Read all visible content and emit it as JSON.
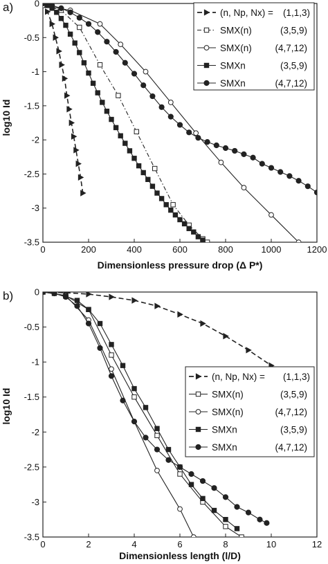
{
  "chart_data": [
    {
      "type": "line",
      "panel_label": "a)",
      "xlabel": "Dimensionless pressure drop (Δ P*)",
      "ylabel": "log10 Id",
      "xlim": [
        0,
        1200
      ],
      "ylim": [
        -3.5,
        0
      ],
      "xticks": [
        "0",
        "200",
        "400",
        "600",
        "800",
        "1000",
        "1200"
      ],
      "yticks": [
        "0",
        "-0.5",
        "-1",
        "-1.5",
        "-2",
        "-2.5",
        "-3",
        "-3.5"
      ],
      "legend_position": "top-right",
      "legend_header": {
        "label": "(n, Np, Nx) =",
        "values": "(1,1,3)"
      },
      "series": [
        {
          "label": "(1,1,3)",
          "color": "#222222",
          "line": "dashed",
          "marker": "triangle-right",
          "x": [
            0,
            20,
            40,
            55,
            70,
            82,
            95,
            105,
            115,
            125,
            135,
            145,
            155,
            165,
            175
          ],
          "y": [
            0,
            -0.12,
            -0.3,
            -0.5,
            -0.7,
            -0.9,
            -1.1,
            -1.35,
            -1.55,
            -1.75,
            -1.95,
            -2.15,
            -2.35,
            -2.55,
            -2.78
          ]
        },
        {
          "label": "SMX(n)",
          "params": "(3,5,9)",
          "color": "#222222",
          "line": "dashdot",
          "marker": "square-open",
          "x": [
            0,
            80,
            160,
            250,
            330,
            410,
            490,
            570,
            640,
            700,
            720
          ],
          "y": [
            -0.02,
            -0.1,
            -0.35,
            -0.9,
            -1.35,
            -1.88,
            -2.42,
            -2.95,
            -3.25,
            -3.45,
            -3.5
          ]
        },
        {
          "label": "SMX(n)",
          "params": "(4,7,12)",
          "color": "#222222",
          "line": "solid",
          "marker": "circle-open",
          "x": [
            0,
            120,
            250,
            340,
            450,
            560,
            670,
            780,
            880,
            1000,
            1120
          ],
          "y": [
            -0.03,
            -0.1,
            -0.3,
            -0.6,
            -1.0,
            -1.45,
            -1.9,
            -2.33,
            -2.7,
            -3.1,
            -3.5
          ]
        },
        {
          "label": "SMXn",
          "params": "(3,5,9)",
          "color": "#222222",
          "line": "solid",
          "marker": "square-filled",
          "x": [
            0,
            20,
            40,
            60,
            80,
            100,
            120,
            140,
            160,
            180,
            200,
            220,
            240,
            260,
            280,
            300,
            320,
            340,
            360,
            380,
            400,
            420,
            440,
            460,
            480,
            500,
            520,
            540,
            560,
            580,
            600,
            620,
            640,
            660,
            680,
            700
          ],
          "y": [
            0,
            -0.03,
            -0.07,
            -0.13,
            -0.22,
            -0.32,
            -0.45,
            -0.58,
            -0.72,
            -0.87,
            -1.02,
            -1.17,
            -1.31,
            -1.45,
            -1.58,
            -1.7,
            -1.82,
            -1.94,
            -2.05,
            -2.16,
            -2.27,
            -2.38,
            -2.48,
            -2.58,
            -2.68,
            -2.78,
            -2.86,
            -2.95,
            -3.03,
            -3.1,
            -3.17,
            -3.23,
            -3.3,
            -3.35,
            -3.42,
            -3.47
          ]
        },
        {
          "label": "SMXn",
          "params": "(4,7,12)",
          "color": "#222222",
          "line": "solid",
          "marker": "circle-filled",
          "x": [
            0,
            40,
            80,
            120,
            160,
            200,
            240,
            280,
            320,
            360,
            400,
            440,
            480,
            520,
            560,
            600,
            640,
            680,
            720,
            760,
            800,
            840,
            880,
            920,
            960,
            1000,
            1040,
            1080,
            1120,
            1160,
            1200
          ],
          "y": [
            0,
            -0.03,
            -0.07,
            -0.13,
            -0.21,
            -0.3,
            -0.42,
            -0.56,
            -0.71,
            -0.87,
            -1.03,
            -1.2,
            -1.36,
            -1.52,
            -1.66,
            -1.78,
            -1.89,
            -1.97,
            -2.03,
            -2.08,
            -2.12,
            -2.16,
            -2.21,
            -2.26,
            -2.35,
            -2.41,
            -2.47,
            -2.53,
            -2.6,
            -2.68,
            -2.77
          ]
        }
      ]
    },
    {
      "type": "line",
      "panel_label": "b)",
      "xlabel": "Dimensionless length (l/D)",
      "ylabel": "log10 Id",
      "xlim": [
        0,
        12
      ],
      "ylim": [
        -3.5,
        0
      ],
      "xticks": [
        "0",
        "2",
        "4",
        "6",
        "8",
        "10",
        "12"
      ],
      "yticks": [
        "0",
        "-0.5",
        "-1",
        "-1.5",
        "-2",
        "-2.5",
        "-3",
        "-3.5"
      ],
      "legend_position": "middle-right",
      "legend_header": {
        "label": "(n, Np, Nx) =",
        "values": "(1,1,3)"
      },
      "series": [
        {
          "label": "(1,1,3)",
          "color": "#222222",
          "line": "dashed",
          "marker": "triangle-right",
          "x": [
            0,
            1,
            2,
            3,
            4,
            5,
            6,
            7,
            8,
            9,
            10
          ],
          "y": [
            0,
            -0.01,
            -0.03,
            -0.07,
            -0.12,
            -0.2,
            -0.32,
            -0.45,
            -0.63,
            -0.83,
            -1.05
          ]
        },
        {
          "label": "SMX(n)",
          "params": "(3,5,9)",
          "color": "#222222",
          "line": "solid",
          "marker": "square-open",
          "x": [
            0,
            1,
            2,
            3,
            4,
            5,
            6,
            7,
            8,
            8.7
          ],
          "y": [
            0,
            -0.05,
            -0.25,
            -0.9,
            -1.5,
            -2.05,
            -2.6,
            -3.0,
            -3.35,
            -3.5
          ]
        },
        {
          "label": "SMX(n)",
          "params": "(4,7,12)",
          "color": "#222222",
          "line": "solid",
          "marker": "circle-open",
          "x": [
            0,
            1,
            2,
            3,
            4,
            5,
            6,
            6.6
          ],
          "y": [
            0,
            -0.05,
            -0.4,
            -1.1,
            -1.85,
            -2.55,
            -3.1,
            -3.5
          ]
        },
        {
          "label": "SMXn",
          "params": "(3,5,9)",
          "color": "#222222",
          "line": "solid",
          "marker": "square-filled",
          "x": [
            0,
            0.5,
            1,
            1.5,
            2,
            2.5,
            3,
            3.5,
            4,
            4.5,
            5,
            5.5,
            6,
            6.5,
            7,
            7.5,
            8,
            8.5
          ],
          "y": [
            0,
            -0.02,
            -0.06,
            -0.12,
            -0.25,
            -0.45,
            -0.75,
            -1.05,
            -1.38,
            -1.65,
            -1.95,
            -2.25,
            -2.5,
            -2.75,
            -2.95,
            -3.12,
            -3.25,
            -3.38
          ]
        },
        {
          "label": "SMXn",
          "params": "(4,7,12)",
          "color": "#222222",
          "line": "solid",
          "marker": "circle-filled",
          "x": [
            0,
            0.5,
            1,
            1.5,
            2,
            2.5,
            3,
            3.5,
            4,
            4.5,
            5,
            5.5,
            6,
            6.5,
            7,
            7.5,
            8,
            8.5,
            9,
            9.5,
            9.8
          ],
          "y": [
            0,
            -0.02,
            -0.07,
            -0.2,
            -0.45,
            -0.8,
            -1.2,
            -1.55,
            -1.85,
            -2.08,
            -2.25,
            -2.4,
            -2.5,
            -2.6,
            -2.7,
            -2.8,
            -2.93,
            -3.07,
            -3.15,
            -3.25,
            -3.3
          ]
        }
      ]
    }
  ]
}
